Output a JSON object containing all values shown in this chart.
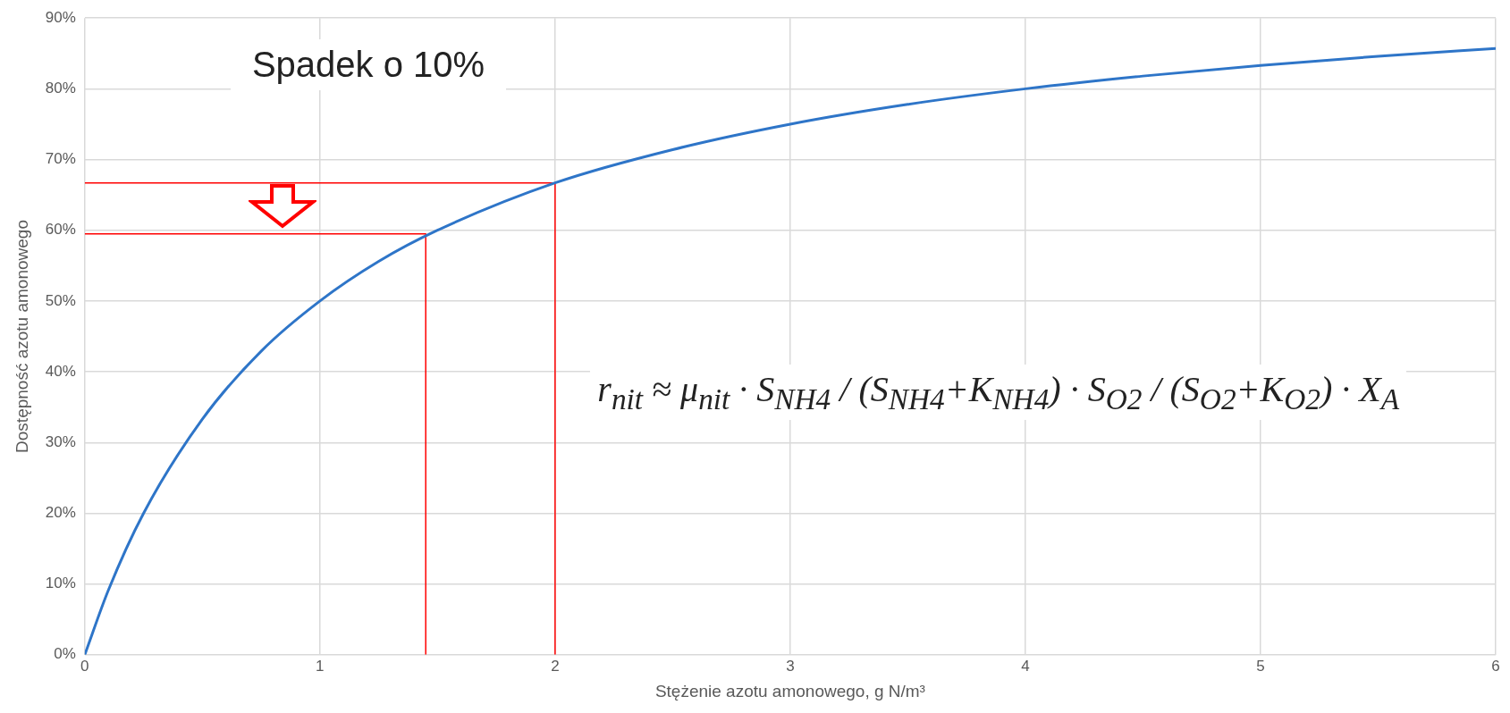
{
  "chart_data": {
    "type": "line",
    "xlabel": "Stężenie azotu amonowego, g N/m³",
    "ylabel": "Dostępność azotu amonowego",
    "xlim": [
      0,
      6
    ],
    "ylim": [
      0,
      90
    ],
    "xticks": [
      0,
      1,
      2,
      3,
      4,
      5,
      6
    ],
    "yticks": [
      {
        "value": 0,
        "label": "0%"
      },
      {
        "value": 10,
        "label": "10%"
      },
      {
        "value": 20,
        "label": "20%"
      },
      {
        "value": 30,
        "label": "30%"
      },
      {
        "value": 40,
        "label": "40%"
      },
      {
        "value": 50,
        "label": "50%"
      },
      {
        "value": 60,
        "label": "60%"
      },
      {
        "value": 70,
        "label": "70%"
      },
      {
        "value": 80,
        "label": "80%"
      },
      {
        "value": 90,
        "label": "90%"
      }
    ],
    "grid": true,
    "legend": false,
    "marker": "none",
    "line_style": "solid",
    "series": [
      {
        "color": "#2e75c8",
        "x": [
          0,
          0.1,
          0.25,
          0.5,
          0.75,
          1,
          1.25,
          1.5,
          2,
          2.5,
          3,
          3.5,
          4,
          4.5,
          5,
          5.5,
          6
        ],
        "values": [
          0,
          9.1,
          20,
          33.3,
          42.9,
          50,
          55.6,
          60,
          66.7,
          71.4,
          75,
          77.8,
          80,
          81.8,
          83.3,
          84.6,
          85.7
        ]
      },
      {
        "color": "#ff0000",
        "x": [
          0,
          2,
          2
        ],
        "values": [
          66.7,
          66.7,
          0
        ]
      },
      {
        "color": "#ff0000",
        "x": [
          0,
          1.45,
          1.45
        ],
        "values": [
          59.5,
          59.5,
          0
        ]
      }
    ],
    "annotations": [
      "Spadek o 10%",
      "r$_{nit}$ ≈ μ$_{nit}$ · S$_{NH4}$ / (S$_{NH4}$+K$_{NH4}$) · S$_{O2}$ / (S$_{O2}$+K$_{O2}$) · X$_{A}$"
    ]
  }
}
